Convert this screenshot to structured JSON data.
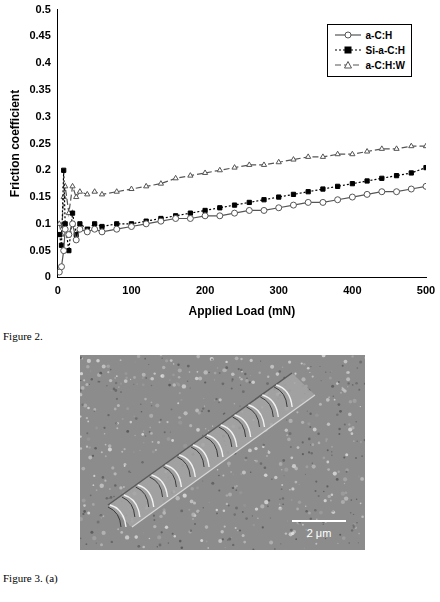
{
  "chart_data": {
    "type": "line",
    "x_label": "Applied Load (mN)",
    "y_label": "Friction coefficient",
    "x": [
      2,
      5,
      8,
      10,
      15,
      20,
      25,
      30,
      40,
      50,
      60,
      80,
      100,
      120,
      140,
      160,
      180,
      200,
      220,
      240,
      260,
      280,
      300,
      320,
      340,
      360,
      380,
      400,
      420,
      440,
      460,
      480,
      500
    ],
    "series": [
      {
        "name": "a-C:H",
        "color": "#555555",
        "marker": "open circle",
        "line_style": "solid",
        "values": [
          0.01,
          0.02,
          0.05,
          0.09,
          0.08,
          0.1,
          0.07,
          0.09,
          0.085,
          0.09,
          0.085,
          0.09,
          0.095,
          0.1,
          0.105,
          0.11,
          0.11,
          0.115,
          0.115,
          0.12,
          0.125,
          0.125,
          0.13,
          0.135,
          0.14,
          0.14,
          0.145,
          0.15,
          0.155,
          0.16,
          0.16,
          0.165,
          0.17
        ]
      },
      {
        "name": "Si-a-C:H",
        "color": "#000000",
        "marker": "filled square",
        "line_style": "dotted",
        "values": [
          0.08,
          0.06,
          0.2,
          0.1,
          0.05,
          0.12,
          0.08,
          0.1,
          0.09,
          0.1,
          0.095,
          0.1,
          0.1,
          0.105,
          0.11,
          0.115,
          0.12,
          0.125,
          0.13,
          0.135,
          0.14,
          0.145,
          0.15,
          0.155,
          0.16,
          0.165,
          0.17,
          0.175,
          0.18,
          0.185,
          0.19,
          0.195,
          0.205
        ]
      },
      {
        "name": "a-C:H:W",
        "color": "#555555",
        "marker": "open triangle",
        "line_style": "dashed",
        "values": [
          0.1,
          0.08,
          0.15,
          0.17,
          0.12,
          0.17,
          0.15,
          0.16,
          0.155,
          0.16,
          0.155,
          0.16,
          0.165,
          0.17,
          0.175,
          0.185,
          0.19,
          0.195,
          0.2,
          0.205,
          0.21,
          0.21,
          0.215,
          0.22,
          0.225,
          0.225,
          0.23,
          0.23,
          0.235,
          0.24,
          0.24,
          0.245,
          0.245
        ]
      }
    ],
    "xlim": [
      0,
      500
    ],
    "xticks": [
      0,
      100,
      200,
      300,
      400,
      500
    ],
    "ylim": [
      0,
      0.5
    ],
    "yticks": [
      0,
      0.05,
      0.1,
      0.15,
      0.2,
      0.25,
      0.3,
      0.35,
      0.4,
      0.45,
      0.5
    ],
    "grid": false,
    "legend": "upper right"
  },
  "captions": {
    "figure_2": "Figure 2.",
    "figure_3": "Figure 3. (a)"
  },
  "micrograph": {
    "scale_bar": "2 μm"
  }
}
